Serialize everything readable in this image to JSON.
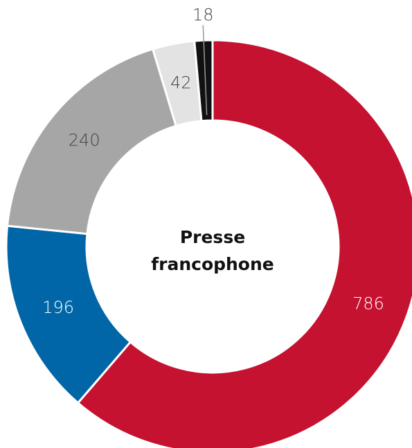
{
  "chart_data": {
    "type": "donut",
    "title_lines": [
      "Presse",
      "francophone"
    ],
    "values": [
      786,
      196,
      240,
      42,
      18
    ],
    "colors": [
      "#c41230",
      "#0066a8",
      "#a6a6a6",
      "#e3e3e3",
      "#111111"
    ],
    "label_colors": [
      "#ffffff",
      "#ffffff",
      "#444444",
      "#444444",
      "#444444"
    ]
  }
}
